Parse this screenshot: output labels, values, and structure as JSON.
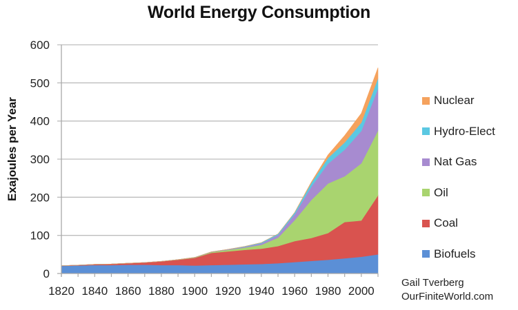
{
  "chart_data": {
    "type": "area",
    "stacked": true,
    "title": "World Energy Consumption",
    "xlabel": "",
    "ylabel": "Exajoules per Year",
    "ylim": [
      0,
      600
    ],
    "yticks": [
      0,
      100,
      200,
      300,
      400,
      500,
      600
    ],
    "xlim": [
      1820,
      2010
    ],
    "xticks": [
      1820,
      1840,
      1860,
      1880,
      1900,
      1920,
      1940,
      1960,
      1980,
      2000
    ],
    "grid": "horizontal",
    "legend_position": "right",
    "x": [
      1820,
      1830,
      1840,
      1850,
      1860,
      1870,
      1880,
      1890,
      1900,
      1910,
      1920,
      1930,
      1940,
      1950,
      1960,
      1970,
      1980,
      1990,
      2000,
      2010
    ],
    "series": [
      {
        "name": "Biofuels",
        "color": "#5b8fd6",
        "values": [
          20,
          21,
          22,
          22,
          23,
          23,
          22,
          22,
          21,
          22,
          23,
          24,
          25,
          27,
          30,
          33,
          36,
          40,
          44,
          50
        ]
      },
      {
        "name": "Coal",
        "color": "#d9534f",
        "values": [
          0.5,
          1,
          2,
          3,
          4,
          6,
          10,
          14,
          20,
          32,
          35,
          38,
          40,
          45,
          55,
          60,
          70,
          95,
          95,
          155
        ]
      },
      {
        "name": "Oil",
        "color": "#a9d46f",
        "values": [
          0,
          0,
          0,
          0,
          0,
          0,
          0,
          0.5,
          1,
          2,
          4,
          6,
          10,
          22,
          55,
          100,
          130,
          120,
          150,
          170
        ]
      },
      {
        "name": "Nat Gas",
        "color": "#a78bd0",
        "values": [
          0,
          0,
          0,
          0,
          0,
          0,
          0,
          0,
          0.2,
          0.5,
          1,
          2,
          4,
          7,
          15,
          35,
          52,
          70,
          85,
          110
        ]
      },
      {
        "name": "Hydro-Elect",
        "color": "#5bc8e2",
        "values": [
          0,
          0,
          0,
          0,
          0,
          0,
          0,
          0,
          0,
          0.3,
          0.5,
          1,
          2,
          3,
          5,
          10,
          15,
          19,
          22,
          27
        ]
      },
      {
        "name": "Nuclear",
        "color": "#f5a25d",
        "values": [
          0,
          0,
          0,
          0,
          0,
          0,
          0,
          0,
          0,
          0,
          0,
          0,
          0,
          0,
          0.2,
          2,
          8,
          18,
          24,
          28
        ]
      }
    ],
    "legend_order": [
      "Nuclear",
      "Hydro-Elect",
      "Nat Gas",
      "Oil",
      "Coal",
      "Biofuels"
    ]
  },
  "credit": {
    "author": "Gail Tverberg",
    "site": "OurFiniteWorld.com"
  }
}
